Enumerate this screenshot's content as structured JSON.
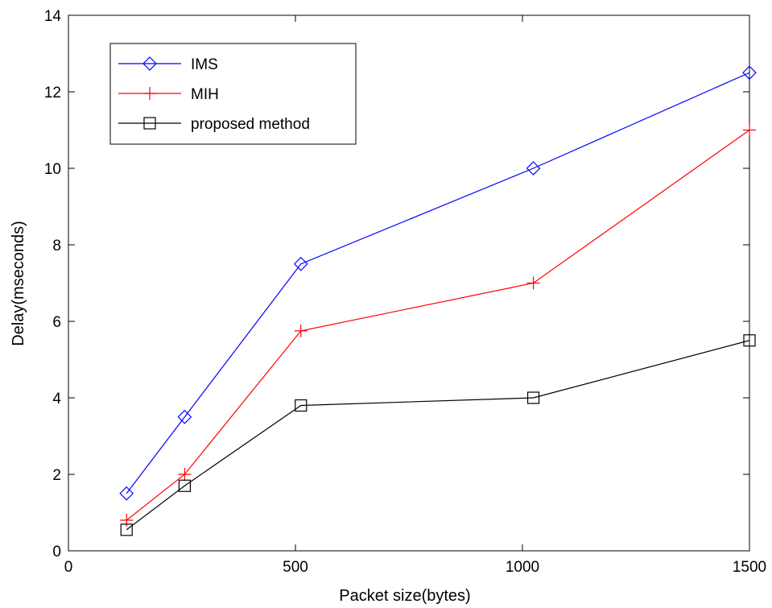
{
  "chart_data": {
    "type": "line",
    "title": "",
    "xlabel": "Packet size(bytes)",
    "ylabel": "Delay(mseconds)",
    "xlim": [
      0,
      1500
    ],
    "ylim": [
      0,
      14
    ],
    "xticks": [
      0,
      500,
      1000,
      1500
    ],
    "yticks": [
      0,
      2,
      4,
      6,
      8,
      10,
      12,
      14
    ],
    "xtick_labels": [
      "0",
      "500",
      "1000",
      "1500"
    ],
    "ytick_labels": [
      "0",
      "2",
      "4",
      "6",
      "8",
      "10",
      "12",
      "14"
    ],
    "grid": false,
    "legend_position": "top-left",
    "x": [
      128,
      256,
      512,
      1024,
      1500
    ],
    "series": [
      {
        "name": "IMS",
        "values": [
          1.5,
          3.5,
          7.5,
          10.0,
          12.5
        ],
        "color": "#0000ff",
        "marker": "diamond"
      },
      {
        "name": "MIH",
        "values": [
          0.8,
          2.0,
          5.75,
          7.0,
          11.0
        ],
        "color": "#ff0000",
        "marker": "plus"
      },
      {
        "name": "proposed method",
        "values": [
          0.55,
          1.7,
          3.8,
          4.0,
          5.5
        ],
        "color": "#000000",
        "marker": "square"
      }
    ]
  }
}
